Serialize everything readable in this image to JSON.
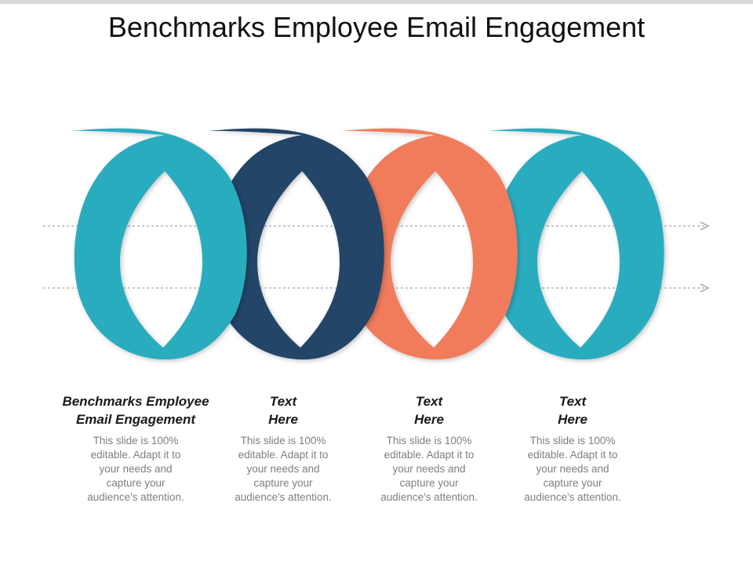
{
  "title": "Benchmarks Employee Email Engagement",
  "colors": {
    "teal": "#2bacbf",
    "navy": "#244468",
    "coral": "#f07b5b",
    "arrow": "#a6a6a6",
    "bar": "#d9d9d9"
  },
  "items": [
    {
      "heading_line1": "Benchmarks Employee",
      "heading_line2": "Email Engagement",
      "desc": [
        "This slide is 100%",
        "editable. Adapt it to",
        "your needs and",
        "capture your",
        "audience's attention."
      ],
      "color": "teal"
    },
    {
      "heading_line1": "Text",
      "heading_line2": "Here",
      "desc": [
        "This slide is 100%",
        "editable. Adapt it to",
        "your needs and",
        "capture your",
        "audience's attention."
      ],
      "color": "navy"
    },
    {
      "heading_line1": "Text",
      "heading_line2": "Here",
      "desc": [
        "This slide is 100%",
        "editable. Adapt it to",
        "your needs and",
        "capture your",
        "audience's attention."
      ],
      "color": "coral"
    },
    {
      "heading_line1": "Text",
      "heading_line2": "Here",
      "desc": [
        "This slide is 100%",
        "editable. Adapt it to",
        "your needs and",
        "capture your",
        "audience's attention."
      ],
      "color": "teal"
    }
  ]
}
